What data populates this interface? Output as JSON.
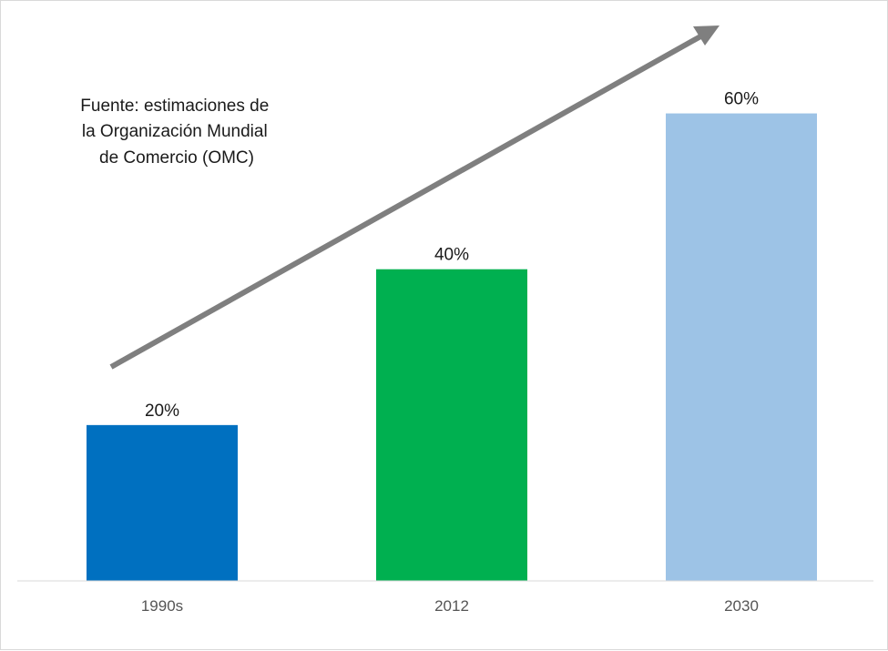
{
  "chart_data": {
    "type": "bar",
    "categories": [
      "1990s",
      "2012",
      "2030"
    ],
    "values": [
      20,
      40,
      60
    ],
    "data_labels": [
      "20%",
      "40%",
      "60%"
    ],
    "bar_colors": [
      "#0070c0",
      "#00b050",
      "#9dc3e6"
    ],
    "ylim": [
      0,
      70
    ],
    "title": "",
    "xlabel": "",
    "ylabel": "",
    "grid": false,
    "legend": "none",
    "annotation": {
      "lines": [
        "Fuente: estimaciones de",
        "la Organización Mundial",
        "de Comercio (OMC)"
      ],
      "arrow_color": "#7f7f7f",
      "arrow_direction": "up-right"
    }
  }
}
